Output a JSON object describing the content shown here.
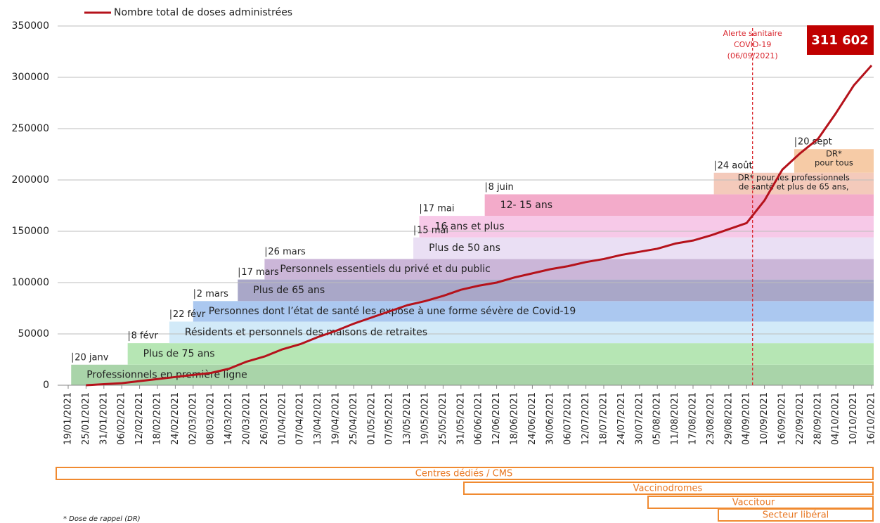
{
  "chart_data": {
    "type": "line",
    "legend": "Nombre total de doses administrées",
    "categories": [
      "19/01/2021",
      "25/01/2021",
      "31/01/2021",
      "06/02/2021",
      "12/02/2021",
      "18/02/2021",
      "24/02/2021",
      "02/03/2021",
      "08/03/2021",
      "14/03/2021",
      "20/03/2021",
      "26/03/2021",
      "01/04/2021",
      "07/04/2021",
      "13/04/2021",
      "19/04/2021",
      "25/04/2021",
      "01/05/2021",
      "07/05/2021",
      "13/05/2021",
      "19/05/2021",
      "25/05/2021",
      "31/05/2021",
      "06/06/2021",
      "12/06/2021",
      "18/06/2021",
      "24/06/2021",
      "30/06/2021",
      "06/07/2021",
      "12/07/2021",
      "18/07/2021",
      "24/07/2021",
      "30/07/2021",
      "05/08/2021",
      "11/08/2021",
      "17/08/2021",
      "23/08/2021",
      "29/08/2021",
      "04/09/2021",
      "10/09/2021",
      "16/09/2021",
      "22/09/2021",
      "28/09/2021",
      "04/10/2021",
      "10/10/2021",
      "16/10/2021"
    ],
    "series": [
      {
        "name": "Nombre total de doses administrées",
        "color": "#b5121b",
        "values": [
          null,
          0,
          1000,
          2000,
          4000,
          6000,
          8000,
          10000,
          12000,
          16000,
          23000,
          28000,
          35000,
          40000,
          47000,
          53000,
          60000,
          66000,
          72000,
          78000,
          82000,
          87000,
          93000,
          97000,
          100000,
          105000,
          109000,
          113000,
          116000,
          120000,
          123000,
          127000,
          130000,
          133000,
          138000,
          141000,
          146000,
          152000,
          158000,
          180000,
          210000,
          226000,
          240000,
          265000,
          292000,
          311602
        ]
      }
    ],
    "ylim": [
      0,
      350000
    ],
    "yticks": [
      0,
      50000,
      100000,
      150000,
      200000,
      250000,
      300000,
      350000
    ],
    "grid": true,
    "last_value": {
      "value": 311602,
      "label": "311 602"
    },
    "alert": {
      "date": "06/09/2021",
      "lines": [
        "Alerte sanitaire",
        "COVID-19",
        "(06/09/2021)"
      ],
      "color": "#d9262e"
    },
    "bands": [
      {
        "start": "20 janv",
        "label": "Professionnels en première ligne",
        "ylim": [
          0,
          20000
        ],
        "color": "#a9d4a9"
      },
      {
        "start": "8 févr",
        "label": "Plus de 75 ans",
        "ylim": [
          20000,
          41000
        ],
        "color": "#b6e6b4"
      },
      {
        "start": "22 févr",
        "label": "Résidents et personnels des maisons de retraites",
        "ylim": [
          41000,
          62000
        ],
        "color": "#d2eaf8"
      },
      {
        "start": "2 mars",
        "label": "Personnes dont l’état de santé les expose à une forme sévère de Covid-19",
        "ylim": [
          62000,
          82000
        ],
        "color": "#abc8f0"
      },
      {
        "start": "17 mars",
        "label": "Plus de 65 ans",
        "ylim": [
          82000,
          103000
        ],
        "color": "#a9a7c8"
      },
      {
        "start": "26 mars",
        "label": "Personnels essentiels du privé et du public",
        "ylim": [
          103000,
          123000
        ],
        "color": "#cbb6d8"
      },
      {
        "start": "15 mai",
        "label": "Plus de 50 ans",
        "ylim": [
          123000,
          144000
        ],
        "color": "#eadff4"
      },
      {
        "start": "17 mai",
        "label": "16 ans et plus",
        "ylim": [
          144000,
          165000
        ],
        "color": "#f7c9e8"
      },
      {
        "start": "8 juin",
        "label": "12- 15 ans",
        "ylim": [
          165000,
          186000
        ],
        "color": "#f3abca"
      },
      {
        "start": "24 août",
        "label": [
          "DR* pour les professionnels",
          "de santé et plus de 65 ans,"
        ],
        "ylim": [
          186000,
          207000
        ],
        "color": "#f4cabb"
      },
      {
        "start": "20 sept",
        "label": [
          "DR*",
          "pour tous"
        ],
        "ylim": [
          207000,
          230000
        ],
        "color": "#f6cba6"
      }
    ],
    "channels": [
      "Centres dédiés / CMS",
      "Vaccinodromes",
      "Vaccitour",
      "Secteur libéral"
    ],
    "footnote": "* Dose de rappel (DR)"
  }
}
